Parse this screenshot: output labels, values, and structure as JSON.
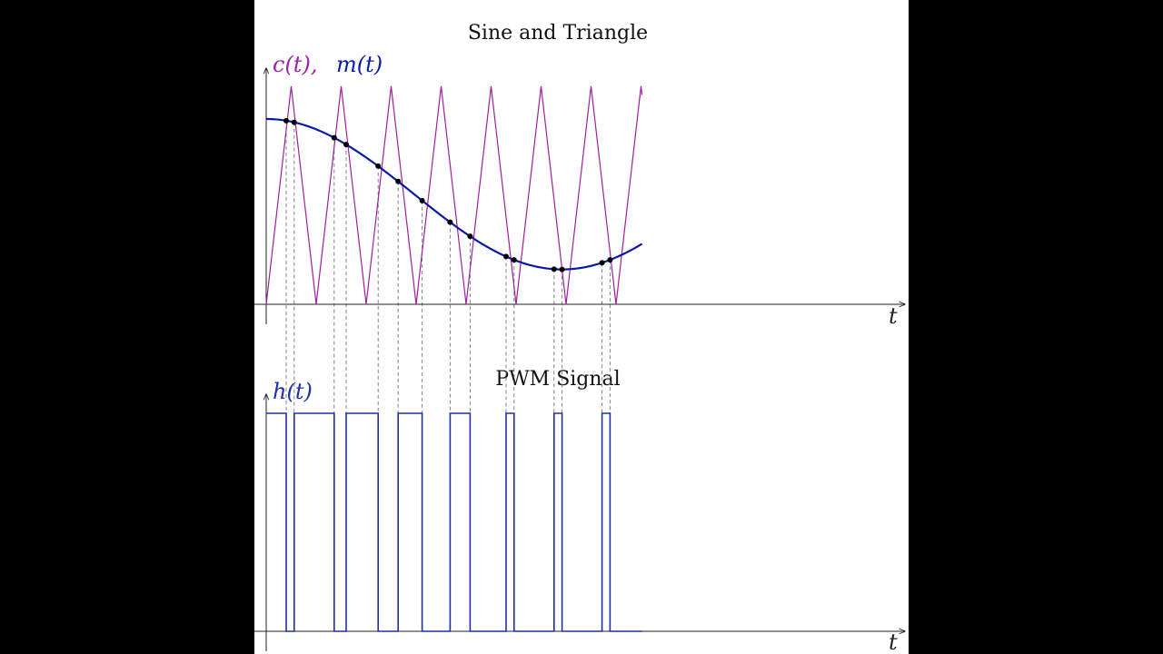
{
  "colors": {
    "background": "#000000",
    "panel": "#ffffff",
    "carrier": "#a020a0",
    "message": "#0a1aa8",
    "pwm": "#1f2fa8",
    "axis": "#222222",
    "guide": "#777777",
    "marker": "#000000"
  },
  "chart_data": [
    {
      "type": "line",
      "title": "Sine and Triangle",
      "ylabel_c": "c(t),",
      "ylabel_m": "m(t)",
      "xlabel": "t",
      "xlim": [
        0,
        1
      ],
      "ylim": [
        0,
        1
      ],
      "series": [
        {
          "kind": "triangle",
          "periods": 8,
          "min": 0,
          "max": 1,
          "t_end": 0.94
        },
        {
          "kind": "cosine",
          "values_at_t0": 0.85,
          "min_value": 0.16,
          "min_at_t": 0.74
        }
      ],
      "intersection_t": [
        0.05,
        0.07,
        0.17,
        0.2,
        0.28,
        0.33,
        0.39,
        0.46,
        0.51,
        0.6,
        0.62,
        0.72,
        0.74,
        0.84,
        0.86
      ]
    },
    {
      "type": "line",
      "title": "PWM Signal",
      "ylabel": "h(t)",
      "xlabel": "t",
      "xlim": [
        0,
        1
      ],
      "ylim": [
        0,
        1
      ],
      "levels": {
        "low": 0,
        "high": 1
      },
      "high_intervals": [
        [
          0,
          0.05
        ],
        [
          0.07,
          0.17
        ],
        [
          0.2,
          0.28
        ],
        [
          0.33,
          0.39
        ],
        [
          0.46,
          0.51
        ],
        [
          0.6,
          0.62
        ],
        [
          0.72,
          0.74
        ],
        [
          0.84,
          0.86
        ]
      ],
      "t_end": 0.94
    }
  ]
}
